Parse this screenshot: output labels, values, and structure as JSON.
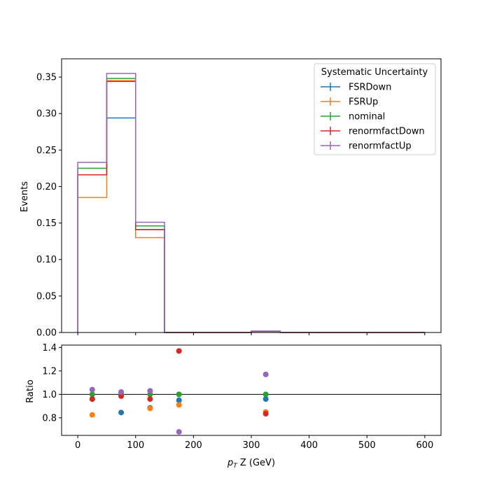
{
  "chart_data": [
    {
      "type": "step",
      "panel": "main",
      "ylabel": "Events",
      "xlim": [
        -28,
        628
      ],
      "ylim": [
        0,
        0.375
      ],
      "xticks": [
        0,
        100,
        200,
        300,
        400,
        500,
        600
      ],
      "yticks": [
        "0.00",
        "0.05",
        "0.10",
        "0.15",
        "0.20",
        "0.25",
        "0.30",
        "0.35"
      ],
      "bin_edges": [
        0,
        50,
        100,
        150,
        200,
        250,
        300,
        350,
        400,
        450,
        500,
        550,
        600
      ],
      "legend": {
        "title": "Systematic Uncertainty",
        "position": "top-right"
      },
      "series": [
        {
          "name": "FSRDown",
          "color": "#1f77b4",
          "values": [
            0.216,
            0.294,
            0.141,
            0,
            0,
            0,
            0.0015,
            0,
            0,
            0,
            0,
            0
          ]
        },
        {
          "name": "FSRUp",
          "color": "#ff7f0e",
          "values": [
            0.185,
            0.345,
            0.13,
            0,
            0,
            0,
            0.0015,
            0,
            0,
            0,
            0,
            0
          ]
        },
        {
          "name": "nominal",
          "color": "#2ca02c",
          "values": [
            0.225,
            0.348,
            0.146,
            0,
            0,
            0,
            0.0017,
            0,
            0,
            0,
            0,
            0
          ]
        },
        {
          "name": "renormfactDown",
          "color": "#d62728",
          "values": [
            0.216,
            0.344,
            0.141,
            0,
            0,
            0,
            0.0015,
            0,
            0,
            0,
            0,
            0
          ]
        },
        {
          "name": "renormfactUp",
          "color": "#9467bd",
          "values": [
            0.233,
            0.355,
            0.151,
            0,
            0,
            0,
            0.002,
            0,
            0,
            0,
            0,
            0
          ]
        }
      ]
    },
    {
      "type": "scatter",
      "panel": "ratio",
      "xlabel": "p_T Z (GeV)",
      "xlabel_main": "p",
      "xlabel_sub": "T",
      "xlabel_rest": " Z (GeV)",
      "ylabel": "Ratio",
      "xlim": [
        -28,
        628
      ],
      "ylim": [
        0.65,
        1.42
      ],
      "xticks": [
        0,
        100,
        200,
        300,
        400,
        500,
        600
      ],
      "yticks": [
        "0.8",
        "1.0",
        "1.2",
        "1.4"
      ],
      "reference_line": 1.0,
      "x": [
        25,
        75,
        125,
        175,
        325
      ],
      "series": [
        {
          "name": "FSRDown",
          "color": "#1f77b4",
          "values": [
            0.96,
            0.845,
            0.885,
            0.95,
            0.96
          ]
        },
        {
          "name": "FSRUp",
          "color": "#ff7f0e",
          "values": [
            0.825,
            0.99,
            0.88,
            0.91,
            0.85
          ]
        },
        {
          "name": "nominal",
          "color": "#2ca02c",
          "values": [
            1.0,
            1.0,
            1.0,
            1.0,
            1.0
          ]
        },
        {
          "name": "renormfactDown",
          "color": "#d62728",
          "values": [
            0.96,
            0.985,
            0.96,
            1.37,
            0.835
          ]
        },
        {
          "name": "renormfactUp",
          "color": "#9467bd",
          "values": [
            1.04,
            1.02,
            1.03,
            0.68,
            1.17
          ]
        }
      ]
    }
  ]
}
